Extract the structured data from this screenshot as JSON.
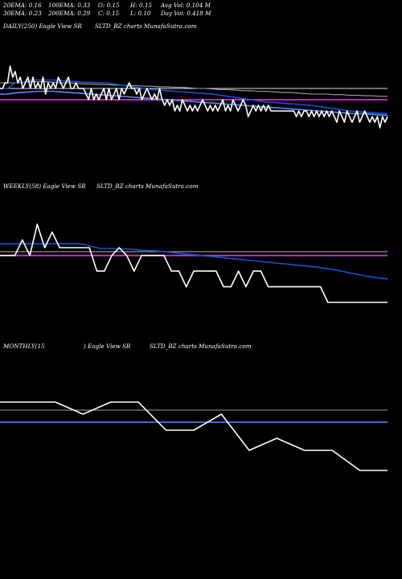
{
  "stats": {
    "row1": [
      "20EMA: 0.16",
      "100EMA: 0.33",
      "O: 0.15",
      "H: 0.15",
      "Avg Vol: 0.104 M"
    ],
    "row2": [
      "30EMA: 0.23",
      "200EMA: 0.29",
      "C: 0.15",
      "L: 0.10",
      "Day Vol: 0.418 M"
    ]
  },
  "panels": [
    {
      "id": "daily",
      "label_left": "DAILY(250) Eagle  View  SR",
      "label_right": "SLTD_BZ charts MunafaSutra.com"
    },
    {
      "id": "weekly",
      "label_left": "WEEKLY(58) Eagle  View  SR",
      "label_right": "SLTD_BZ charts MunafaSutra.com"
    },
    {
      "id": "monthly",
      "label_left": "MONTHLY(15",
      "label_mid": ") Eagle  View  SR",
      "label_right": "SLTD_BZ charts MunafaSutra.com"
    }
  ],
  "colors": {
    "price": "#ffffff",
    "ema_blue": "#1a4fd6",
    "ema_light_blue": "#5a8aff",
    "ema_gray": "#a0a0a0",
    "ema_magenta": "#cc33cc",
    "ema_white_long": "#dddddd"
  },
  "chart_data": [
    {
      "type": "line",
      "panel": "daily",
      "ylim": [
        0.05,
        0.3
      ],
      "series": [
        {
          "role": "price",
          "values": [
            0.2,
            0.2,
            0.21,
            0.21,
            0.24,
            0.22,
            0.23,
            0.21,
            0.22,
            0.2,
            0.21,
            0.22,
            0.2,
            0.22,
            0.2,
            0.21,
            0.2,
            0.22,
            0.19,
            0.21,
            0.2,
            0.21,
            0.2,
            0.22,
            0.21,
            0.2,
            0.21,
            0.22,
            0.2,
            0.2,
            0.21,
            0.2,
            0.2,
            0.2,
            0.19,
            0.18,
            0.2,
            0.18,
            0.19,
            0.18,
            0.19,
            0.2,
            0.18,
            0.2,
            0.18,
            0.19,
            0.2,
            0.18,
            0.2,
            0.19,
            0.2,
            0.21,
            0.2,
            0.2,
            0.19,
            0.2,
            0.18,
            0.19,
            0.2,
            0.19,
            0.18,
            0.19,
            0.18,
            0.2,
            0.18,
            0.17,
            0.18,
            0.17,
            0.18,
            0.16,
            0.17,
            0.16,
            0.18,
            0.17,
            0.16,
            0.17,
            0.16,
            0.17,
            0.16,
            0.17,
            0.18,
            0.17,
            0.16,
            0.17,
            0.16,
            0.17,
            0.16,
            0.17,
            0.18,
            0.16,
            0.17,
            0.16,
            0.18,
            0.17,
            0.16,
            0.17,
            0.18,
            0.17,
            0.15,
            0.16,
            0.17,
            0.16,
            0.17,
            0.16,
            0.17,
            0.16,
            0.17,
            0.16,
            0.16,
            0.16,
            0.16,
            0.16,
            0.16,
            0.16,
            0.16,
            0.16,
            0.16,
            0.15,
            0.16,
            0.15,
            0.16,
            0.16,
            0.15,
            0.16,
            0.15,
            0.16,
            0.15,
            0.16,
            0.15,
            0.16,
            0.15,
            0.16,
            0.15,
            0.14,
            0.16,
            0.15,
            0.14,
            0.16,
            0.15,
            0.14,
            0.15,
            0.16,
            0.14,
            0.15,
            0.16,
            0.15,
            0.14,
            0.15,
            0.14,
            0.15,
            0.13,
            0.15,
            0.14,
            0.15
          ]
        },
        {
          "role": "ema_blue",
          "values": [
            0.2,
            0.2,
            0.21,
            0.21,
            0.215,
            0.215,
            0.215,
            0.215,
            0.214,
            0.213,
            0.212,
            0.211,
            0.211,
            0.21,
            0.21,
            0.208,
            0.206,
            0.204,
            0.202,
            0.2,
            0.198,
            0.197,
            0.196,
            0.195,
            0.194,
            0.193,
            0.192,
            0.191,
            0.19,
            0.188,
            0.186,
            0.184,
            0.182,
            0.18,
            0.178,
            0.176,
            0.175,
            0.174,
            0.173,
            0.172,
            0.171,
            0.17,
            0.168,
            0.166,
            0.164,
            0.162,
            0.16,
            0.159,
            0.158,
            0.157,
            0.156,
            0.155
          ]
        },
        {
          "role": "ema_light_blue",
          "values": [
            0.19,
            0.19,
            0.192,
            0.193,
            0.194,
            0.195,
            0.195,
            0.195,
            0.194,
            0.193,
            0.192,
            0.191,
            0.19,
            0.189,
            0.188,
            0.187,
            0.186,
            0.185,
            0.184,
            0.183,
            0.182,
            0.181,
            0.18,
            0.179,
            0.178,
            0.177,
            0.176,
            0.175,
            0.174,
            0.173,
            0.172,
            0.171,
            0.17,
            0.169,
            0.168,
            0.167,
            0.166,
            0.165,
            0.164,
            0.163,
            0.162,
            0.161,
            0.16,
            0.159,
            0.158,
            0.157,
            0.156,
            0.155,
            0.155,
            0.154,
            0.153,
            0.152
          ]
        },
        {
          "role": "ema_gray",
          "values": [
            0.21,
            0.21,
            0.21,
            0.211,
            0.212,
            0.212,
            0.212,
            0.211,
            0.21,
            0.21,
            0.209,
            0.208,
            0.208,
            0.207,
            0.207,
            0.206,
            0.206,
            0.205,
            0.205,
            0.204,
            0.204,
            0.203,
            0.203,
            0.202,
            0.202,
            0.201,
            0.2,
            0.2,
            0.199,
            0.198,
            0.198,
            0.197,
            0.196,
            0.196,
            0.195,
            0.195,
            0.194,
            0.193,
            0.193,
            0.192,
            0.191,
            0.19,
            0.19,
            0.19,
            0.189,
            0.189,
            0.188,
            0.188,
            0.187,
            0.187,
            0.186,
            0.186
          ]
        },
        {
          "role": "ema_magenta",
          "values": [
            0.18,
            0.18,
            0.18,
            0.18,
            0.18,
            0.18,
            0.18,
            0.18,
            0.18,
            0.18,
            0.18,
            0.18,
            0.18,
            0.18,
            0.18,
            0.18,
            0.18,
            0.18,
            0.18,
            0.18,
            0.18,
            0.18,
            0.18,
            0.18,
            0.18,
            0.18,
            0.18,
            0.18,
            0.18,
            0.18,
            0.18,
            0.18,
            0.18,
            0.18,
            0.18,
            0.18,
            0.18,
            0.18,
            0.18,
            0.18,
            0.18,
            0.18,
            0.18,
            0.18,
            0.18,
            0.18,
            0.18,
            0.18,
            0.18,
            0.18,
            0.18,
            0.18
          ]
        },
        {
          "role": "ema_white_long",
          "values": [
            0.2,
            0.2,
            0.2,
            0.2,
            0.2,
            0.2,
            0.2,
            0.2,
            0.2,
            0.2,
            0.2,
            0.2,
            0.2,
            0.2,
            0.2,
            0.2,
            0.2,
            0.2,
            0.2,
            0.2,
            0.2,
            0.2,
            0.2,
            0.2,
            0.2,
            0.2,
            0.2,
            0.2,
            0.2,
            0.2,
            0.2,
            0.2,
            0.2,
            0.2,
            0.2,
            0.2,
            0.2,
            0.2,
            0.2,
            0.2,
            0.2,
            0.2,
            0.2,
            0.2,
            0.2,
            0.2,
            0.2,
            0.2,
            0.2,
            0.2,
            0.2,
            0.2
          ]
        }
      ]
    },
    {
      "type": "line",
      "panel": "weekly",
      "ylim": [
        0.05,
        0.4
      ],
      "series": [
        {
          "role": "price",
          "values": [
            0.24,
            0.24,
            0.24,
            0.28,
            0.24,
            0.32,
            0.26,
            0.3,
            0.26,
            0.26,
            0.26,
            0.26,
            0.26,
            0.2,
            0.2,
            0.24,
            0.26,
            0.24,
            0.2,
            0.24,
            0.24,
            0.24,
            0.24,
            0.2,
            0.2,
            0.16,
            0.2,
            0.2,
            0.2,
            0.2,
            0.16,
            0.16,
            0.2,
            0.16,
            0.2,
            0.2,
            0.16,
            0.16,
            0.16,
            0.16,
            0.16,
            0.16,
            0.16,
            0.16,
            0.12,
            0.12,
            0.12,
            0.12,
            0.12,
            0.12,
            0.12,
            0.12,
            0.12
          ]
        },
        {
          "role": "ema_blue",
          "values": [
            0.27,
            0.27,
            0.27,
            0.27,
            0.27,
            0.27,
            0.27,
            0.27,
            0.27,
            0.27,
            0.27,
            0.268,
            0.262,
            0.258,
            0.258,
            0.258,
            0.257,
            0.256,
            0.254,
            0.253,
            0.252,
            0.25,
            0.248,
            0.246,
            0.244,
            0.242,
            0.24,
            0.238,
            0.236,
            0.234,
            0.232,
            0.23,
            0.228,
            0.226,
            0.224,
            0.222,
            0.22,
            0.218,
            0.216,
            0.214,
            0.212,
            0.21,
            0.207,
            0.204,
            0.2,
            0.196,
            0.192,
            0.188,
            0.185,
            0.182,
            0.18
          ]
        },
        {
          "role": "ema_gray",
          "values": [
            0.25,
            0.25,
            0.25,
            0.25,
            0.25,
            0.25,
            0.25,
            0.25,
            0.25,
            0.25,
            0.25,
            0.25,
            0.25,
            0.25,
            0.25,
            0.25,
            0.25,
            0.25,
            0.25,
            0.25,
            0.25,
            0.25,
            0.25,
            0.25,
            0.25,
            0.25,
            0.25,
            0.25,
            0.25,
            0.25,
            0.25,
            0.25,
            0.25,
            0.25,
            0.25,
            0.25,
            0.25,
            0.25,
            0.25,
            0.25,
            0.25,
            0.25,
            0.25,
            0.25,
            0.25,
            0.25,
            0.25,
            0.25,
            0.25,
            0.25,
            0.25
          ]
        },
        {
          "role": "ema_magenta",
          "values": [
            0.24,
            0.24,
            0.24,
            0.24,
            0.24,
            0.24,
            0.24,
            0.24,
            0.24,
            0.24,
            0.24,
            0.24,
            0.24,
            0.24,
            0.24,
            0.24,
            0.24,
            0.24,
            0.24,
            0.24,
            0.24,
            0.24,
            0.24,
            0.24,
            0.24,
            0.24,
            0.24,
            0.24,
            0.24,
            0.24,
            0.24,
            0.24,
            0.24,
            0.24,
            0.24,
            0.24,
            0.24,
            0.24,
            0.24,
            0.24,
            0.24,
            0.24,
            0.24,
            0.24,
            0.24,
            0.24,
            0.24,
            0.24,
            0.24,
            0.24,
            0.24
          ]
        }
      ]
    },
    {
      "type": "line",
      "panel": "monthly",
      "ylim": [
        0.05,
        0.45
      ],
      "series": [
        {
          "role": "price",
          "values": [
            0.33,
            0.33,
            0.33,
            0.3,
            0.33,
            0.33,
            0.26,
            0.26,
            0.3,
            0.21,
            0.24,
            0.21,
            0.21,
            0.16,
            0.16
          ]
        },
        {
          "role": "ema_gray",
          "values": [
            0.31,
            0.31,
            0.31,
            0.31,
            0.31,
            0.31,
            0.31,
            0.31,
            0.31,
            0.31,
            0.31,
            0.31,
            0.31,
            0.31,
            0.31
          ]
        },
        {
          "role": "ema_light_blue",
          "values": [
            0.28,
            0.28,
            0.28,
            0.28,
            0.28,
            0.28,
            0.28,
            0.28,
            0.28,
            0.28,
            0.28,
            0.28,
            0.28,
            0.28,
            0.28
          ]
        }
      ]
    }
  ]
}
